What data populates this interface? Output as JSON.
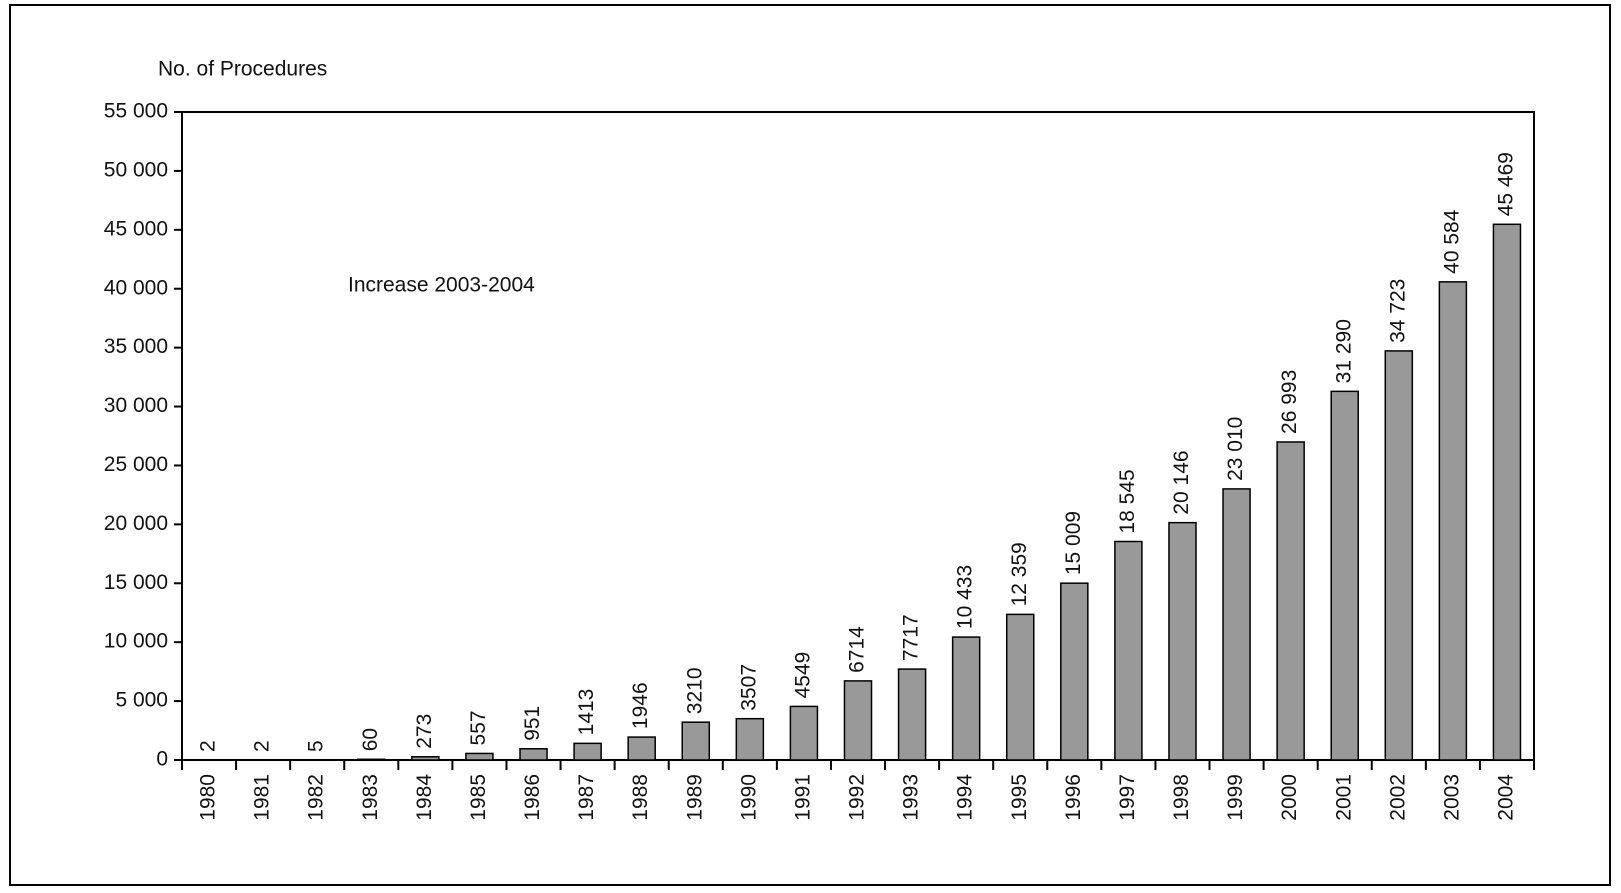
{
  "chart_data": {
    "type": "bar",
    "y_label": "No. of Procedures",
    "annotation": "Increase 2003-2004",
    "categories": [
      "1980",
      "1981",
      "1982",
      "1983",
      "1984",
      "1985",
      "1986",
      "1987",
      "1988",
      "1989",
      "1990",
      "1991",
      "1992",
      "1993",
      "1994",
      "1995",
      "1996",
      "1997",
      "1998",
      "1999",
      "2000",
      "2001",
      "2002",
      "2003",
      "2004"
    ],
    "values": [
      2,
      2,
      5,
      60,
      273,
      557,
      951,
      1413,
      1946,
      3210,
      3507,
      4549,
      6714,
      7717,
      10433,
      12359,
      15009,
      18545,
      20146,
      23010,
      26993,
      31290,
      34723,
      40584,
      45469
    ],
    "value_labels": [
      "2",
      "2",
      "5",
      "60",
      "273",
      "557",
      "951",
      "1413",
      "1946",
      "3210",
      "3507",
      "4549",
      "6714",
      "7717",
      "10 433",
      "12 359",
      "15 009",
      "18 545",
      "20 146",
      "23 010",
      "26 993",
      "31 290",
      "34 723",
      "40 584",
      "45 469"
    ],
    "color": "#999999",
    "ylim": [
      0,
      55000
    ],
    "yticks": [
      0,
      {
        "value": 5000,
        "label": "5 000"
      },
      {
        "value": 10000,
        "label": "10 000"
      },
      {
        "value": 15000,
        "label": "15 000"
      },
      {
        "value": 20000,
        "label": "20 000"
      },
      {
        "value": 25000,
        "label": "25 000"
      },
      {
        "value": 30000,
        "label": "30 000"
      },
      {
        "value": 35000,
        "label": "35 000"
      },
      {
        "value": 40000,
        "label": "40 000"
      },
      {
        "value": 45000,
        "label": "45 000"
      },
      {
        "value": 50000,
        "label": "50 000"
      },
      {
        "value": 55000,
        "label": "55 000"
      }
    ],
    "grid": false
  }
}
